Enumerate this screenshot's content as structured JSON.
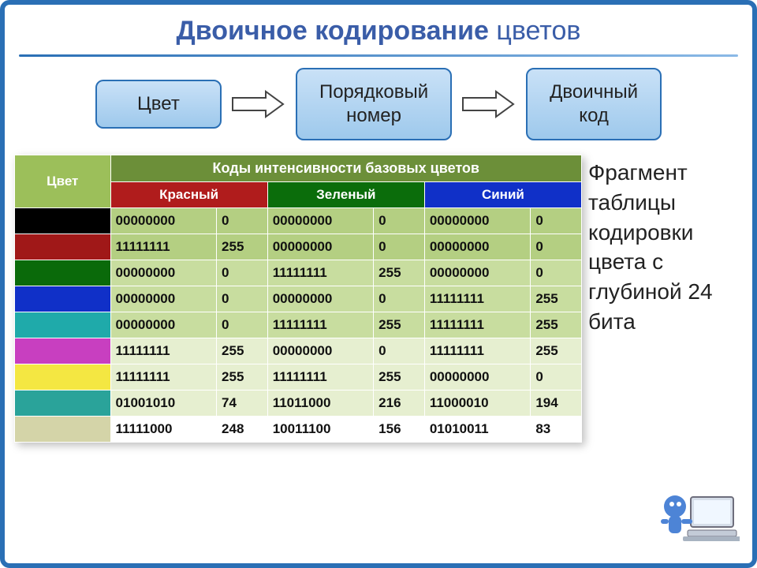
{
  "title": {
    "bold": "Двоичное кодирование",
    "light": " цветов"
  },
  "flow": {
    "box1": "Цвет",
    "box2": "Порядковый\nномер",
    "box3": "Двоичный\nкод"
  },
  "side_text": "Фрагмент таблицы кодировки цвета с глубиной 24 бита",
  "table": {
    "hdr_color": "Цвет",
    "hdr_codes": "Коды интенсивности базовых цветов",
    "hdr_r": "Красный",
    "hdr_g": "Зеленый",
    "hdr_b": "Синий",
    "row_classes": [
      "row-a",
      "row-a",
      "row-b",
      "row-b",
      "row-b",
      "row-c",
      "row-c",
      "row-c",
      "row-last"
    ],
    "swatch_colors": [
      "#000000",
      "#a01818",
      "#0a6a0a",
      "#1030c8",
      "#1faaaa",
      "#c83fc0",
      "#f4e742",
      "#2aa39a",
      "#d4d4a8"
    ],
    "rows": [
      {
        "r_bin": "00000000",
        "r_dec": "0",
        "g_bin": "00000000",
        "g_dec": "0",
        "b_bin": "00000000",
        "b_dec": "0"
      },
      {
        "r_bin": "11111111",
        "r_dec": "255",
        "g_bin": "00000000",
        "g_dec": "0",
        "b_bin": "00000000",
        "b_dec": "0"
      },
      {
        "r_bin": "00000000",
        "r_dec": "0",
        "g_bin": "11111111",
        "g_dec": "255",
        "b_bin": "00000000",
        "b_dec": "0"
      },
      {
        "r_bin": "00000000",
        "r_dec": "0",
        "g_bin": "00000000",
        "g_dec": "0",
        "b_bin": "11111111",
        "b_dec": "255"
      },
      {
        "r_bin": "00000000",
        "r_dec": "0",
        "g_bin": "11111111",
        "g_dec": "255",
        "b_bin": "11111111",
        "b_dec": "255"
      },
      {
        "r_bin": "11111111",
        "r_dec": "255",
        "g_bin": "00000000",
        "g_dec": "0",
        "b_bin": "11111111",
        "b_dec": "255"
      },
      {
        "r_bin": "11111111",
        "r_dec": "255",
        "g_bin": "11111111",
        "g_dec": "255",
        "b_bin": "00000000",
        "b_dec": "0"
      },
      {
        "r_bin": "01001010",
        "r_dec": "74",
        "g_bin": "11011000",
        "g_dec": "216",
        "b_bin": "11000010",
        "b_dec": "194"
      },
      {
        "r_bin": "11111000",
        "r_dec": "248",
        "g_bin": "10011100",
        "g_dec": "156",
        "b_bin": "01010011",
        "b_dec": "83"
      }
    ]
  },
  "colors": {
    "frame": "#2a6fb5",
    "title": "#3a5da8",
    "box_border": "#2a6fb5",
    "box_bg_top": "#c9e1f7",
    "box_bg_bot": "#9ec9ec"
  }
}
